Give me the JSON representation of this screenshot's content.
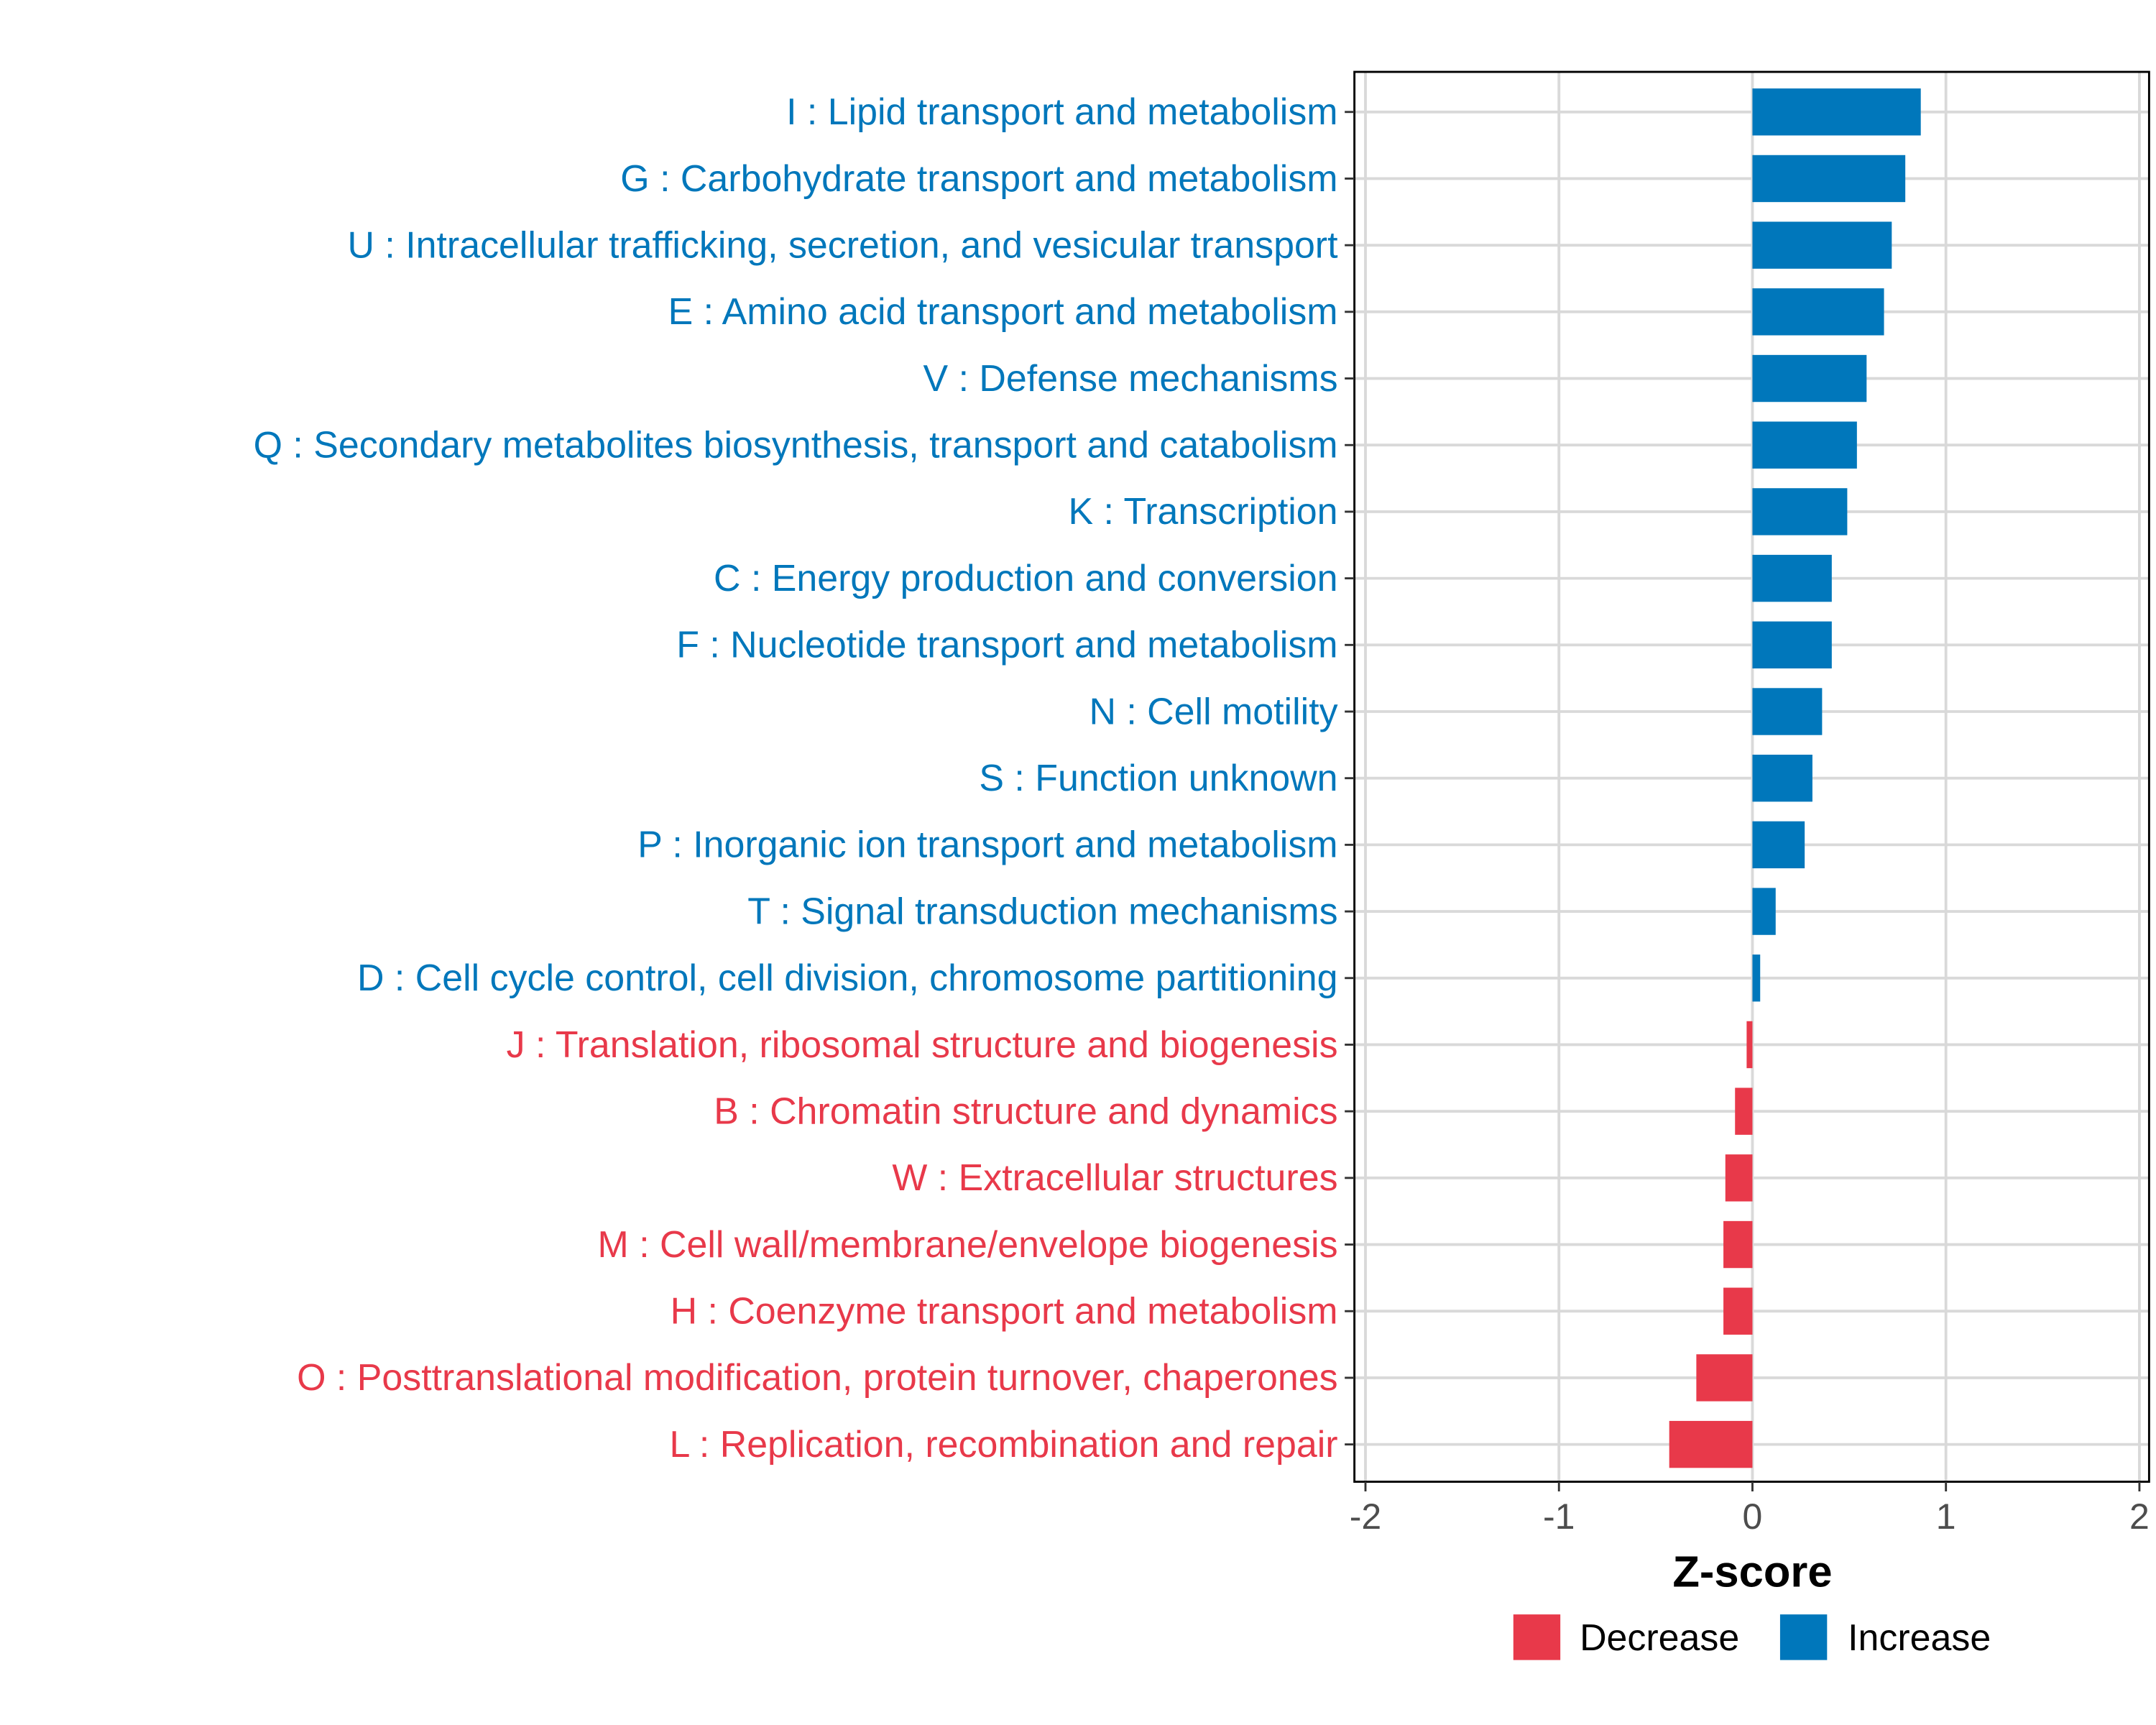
{
  "chart_data": {
    "type": "bar",
    "orientation": "horizontal",
    "title": "",
    "xlabel": "Z-score",
    "ylabel": "",
    "xlim": [
      -2,
      2
    ],
    "xticks": [
      "-2",
      "-1",
      "0",
      "1",
      "2"
    ],
    "xtick_values": [
      -2,
      -1,
      0,
      1,
      2
    ],
    "grid": true,
    "legend_position": "bottom",
    "colors": {
      "Decrease": "#E8394A",
      "Increase": "#0077BB"
    },
    "legend": [
      "Decrease",
      "Increase"
    ],
    "categories": [
      "I : Lipid transport and metabolism",
      "G : Carbohydrate transport and metabolism",
      "U : Intracellular trafficking, secretion, and vesicular transport",
      "E : Amino acid transport and metabolism",
      "V : Defense mechanisms",
      "Q : Secondary metabolites biosynthesis, transport and catabolism",
      "K : Transcription",
      "C : Energy production and conversion",
      "F : Nucleotide transport and metabolism",
      "N : Cell motility",
      "S : Function unknown",
      "P : Inorganic ion transport and metabolism",
      "T : Signal transduction mechanisms",
      "D : Cell cycle control, cell division, chromosome partitioning",
      "J : Translation, ribosomal structure and biogenesis",
      "B : Chromatin structure and dynamics",
      "W : Extracellular structures",
      "M : Cell wall/membrane/envelope biogenesis",
      "H : Coenzyme transport and metabolism",
      "O : Posttranslational modification, protein turnover, chaperones",
      "L : Replication, recombination and repair"
    ],
    "values": [
      0.87,
      0.79,
      0.72,
      0.68,
      0.59,
      0.54,
      0.49,
      0.41,
      0.41,
      0.36,
      0.31,
      0.27,
      0.12,
      0.04,
      -0.03,
      -0.09,
      -0.14,
      -0.15,
      -0.15,
      -0.29,
      -0.43
    ]
  }
}
